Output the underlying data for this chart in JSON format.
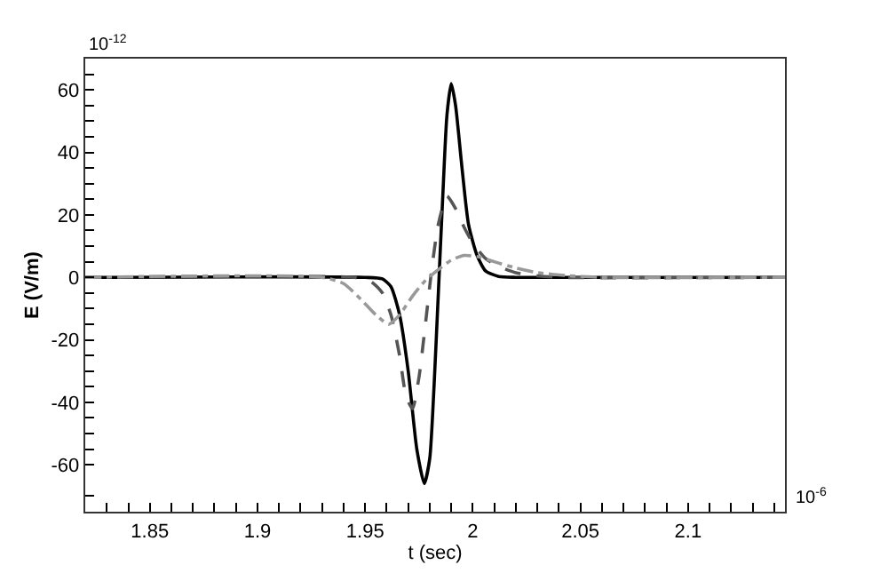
{
  "chart_data": {
    "type": "line",
    "xlabel": "t (sec)",
    "ylabel": "E (V/m)",
    "annotations": [
      "10$^{-12}$",
      "10$^{-6}$"
    ],
    "xlim": [
      1.82,
      2.145
    ],
    "ylim": [
      -75,
      70
    ],
    "xticks": [
      {
        "value": 1.83,
        "label": null
      },
      {
        "value": 1.84,
        "label": null
      },
      1.85,
      {
        "value": 1.86,
        "label": null
      },
      {
        "value": 1.87,
        "label": null
      },
      {
        "value": 1.88,
        "label": null
      },
      {
        "value": 1.89,
        "label": null
      },
      1.9,
      {
        "value": 1.91,
        "label": null
      },
      {
        "value": 1.92,
        "label": null
      },
      {
        "value": 1.93,
        "label": null
      },
      {
        "value": 1.94,
        "label": null
      },
      1.95,
      {
        "value": 1.96,
        "label": null
      },
      {
        "value": 1.97,
        "label": null
      },
      {
        "value": 1.98,
        "label": null
      },
      {
        "value": 1.99,
        "label": null
      },
      2,
      {
        "value": 2.01,
        "label": null
      },
      {
        "value": 2.02,
        "label": null
      },
      {
        "value": 2.03,
        "label": null
      },
      {
        "value": 2.04,
        "label": null
      },
      2.05,
      {
        "value": 2.06,
        "label": null
      },
      {
        "value": 2.07,
        "label": null
      },
      {
        "value": 2.08,
        "label": null
      },
      {
        "value": 2.09,
        "label": null
      },
      2.1,
      {
        "value": 2.11,
        "label": null
      },
      {
        "value": 2.12,
        "label": null
      },
      {
        "value": 2.13,
        "label": null
      },
      {
        "value": 2.14,
        "label": null
      }
    ],
    "yticks": [
      {
        "value": -70,
        "label": null
      },
      -60,
      {
        "value": -55,
        "label": null
      },
      {
        "value": -50,
        "label": null
      },
      {
        "value": -45,
        "label": null
      },
      -40,
      {
        "value": -35,
        "label": null
      },
      {
        "value": -30,
        "label": null
      },
      {
        "value": -25,
        "label": null
      },
      -20,
      {
        "value": -15,
        "label": null
      },
      {
        "value": -10,
        "label": null
      },
      {
        "value": -5,
        "label": null
      },
      0,
      {
        "value": 5,
        "label": null
      },
      {
        "value": 10,
        "label": null
      },
      {
        "value": 15,
        "label": null
      },
      20,
      {
        "value": 25,
        "label": null
      },
      {
        "value": 30,
        "label": null
      },
      {
        "value": 35,
        "label": null
      },
      40,
      {
        "value": 45,
        "label": null
      },
      {
        "value": 50,
        "label": null
      },
      {
        "value": 55,
        "label": null
      },
      60,
      {
        "value": 65,
        "label": null
      }
    ],
    "marker": "none",
    "series": [
      {
        "color": "#000000",
        "line_style": "solid",
        "x": [
          1.82,
          1.95,
          1.958,
          1.962,
          1.966,
          1.97,
          1.974,
          1.9775,
          1.98,
          1.982,
          1.984,
          1.986,
          1.988,
          1.99,
          1.992,
          1.995,
          1.998,
          2.002,
          2.006,
          2.012,
          2.02,
          2.145
        ],
        "values": [
          0,
          0,
          -0.5,
          -3,
          -12,
          -30,
          -55,
          -66,
          -58,
          -35,
          -5,
          25,
          52,
          62,
          55,
          35,
          17,
          7,
          2,
          0.3,
          0,
          0
        ]
      },
      {
        "color": "#555555",
        "line_style": "dashed",
        "x": [
          1.82,
          1.945,
          1.952,
          1.958,
          1.962,
          1.966,
          1.969,
          1.972,
          1.975,
          1.978,
          1.981,
          1.984,
          1.988,
          1.992,
          1.996,
          2.0,
          2.006,
          2.012,
          2.02,
          2.03,
          2.04,
          2.145
        ],
        "values": [
          0,
          0,
          -1,
          -5,
          -12,
          -25,
          -38,
          -42,
          -32,
          -15,
          3,
          17,
          26,
          22,
          16,
          11,
          6,
          3.5,
          1.5,
          0.5,
          0,
          0
        ]
      },
      {
        "color": "#999999",
        "line_style": "dashdot",
        "x": [
          1.82,
          1.93,
          1.94,
          1.948,
          1.955,
          1.961,
          1.966,
          1.972,
          1.978,
          1.985,
          1.99,
          1.996,
          2.003,
          2.01,
          2.02,
          2.03,
          2.045,
          2.06,
          2.145
        ],
        "values": [
          0,
          0,
          -2,
          -7,
          -12,
          -15,
          -12,
          -6,
          -1,
          3,
          5.5,
          7,
          6.5,
          5,
          3,
          1.5,
          0.5,
          0,
          0
        ]
      }
    ]
  }
}
